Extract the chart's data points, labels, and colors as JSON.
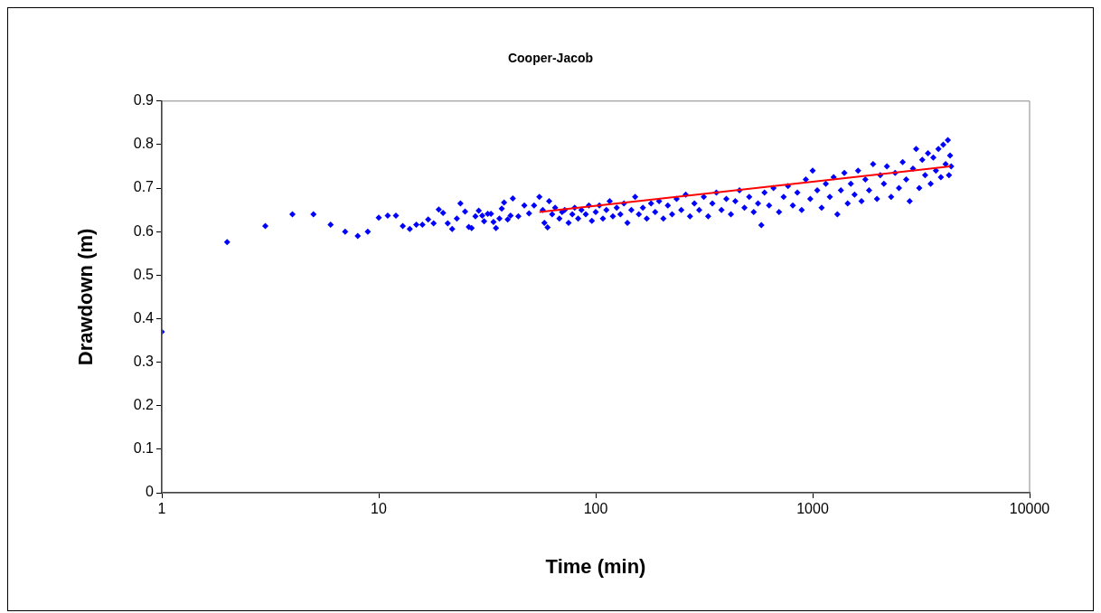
{
  "chart_data": {
    "type": "scatter",
    "title": "Cooper-Jacob",
    "xlabel": "Time (min)",
    "ylabel": "Drawdown (m)",
    "log": "x",
    "xlim": [
      1,
      10000
    ],
    "xticks": [
      1,
      10,
      100,
      1000,
      10000
    ],
    "ylim": [
      0,
      0.9
    ],
    "yticks": [
      0,
      0.1,
      0.2,
      0.3,
      0.4,
      0.5,
      0.6,
      0.7,
      0.8,
      0.9
    ],
    "grid": false,
    "legend": false,
    "marker": "diamond",
    "series": [
      {
        "color": "#0000ff",
        "x": [
          1,
          2,
          3,
          4,
          5,
          6,
          7,
          8,
          8.9,
          10,
          11,
          12,
          12.9,
          13.9,
          14.9,
          15.9,
          16.9,
          17.9,
          18.9,
          19.8,
          20.8,
          21.8,
          22.9,
          23.8,
          25,
          26,
          26.8,
          27.9,
          28.9,
          30,
          30.6,
          31.8,
          32.9,
          33.8,
          34.7,
          36,
          36.9,
          37.8,
          39.3,
          40.5,
          41.5,
          44,
          46.9,
          49.3,
          52,
          55,
          57,
          58,
          60,
          61,
          63,
          65,
          68,
          70,
          72,
          75,
          78,
          80,
          83,
          86,
          90,
          93,
          96,
          100,
          104,
          108,
          112,
          116,
          120,
          125,
          130,
          135,
          140,
          146,
          152,
          158,
          165,
          172,
          180,
          188,
          196,
          205,
          215,
          225,
          236,
          248,
          260,
          272,
          285,
          300,
          315,
          330,
          345,
          360,
          380,
          400,
          420,
          440,
          460,
          485,
          510,
          535,
          560,
          580,
          600,
          630,
          660,
          700,
          735,
          770,
          810,
          850,
          890,
          930,
          975,
          1000,
          1050,
          1100,
          1150,
          1200,
          1250,
          1300,
          1350,
          1400,
          1450,
          1500,
          1560,
          1620,
          1680,
          1750,
          1820,
          1900,
          1980,
          2050,
          2130,
          2200,
          2300,
          2400,
          2500,
          2600,
          2700,
          2800,
          2900,
          3000,
          3100,
          3200,
          3300,
          3400,
          3500,
          3600,
          3700,
          3800,
          3900,
          4000,
          4100,
          4200,
          4250,
          4300,
          4350
        ],
        "values": [
          0.37,
          0.576,
          0.613,
          0.64,
          0.64,
          0.616,
          0.6,
          0.59,
          0.6,
          0.632,
          0.637,
          0.637,
          0.613,
          0.606,
          0.616,
          0.616,
          0.628,
          0.619,
          0.651,
          0.643,
          0.619,
          0.606,
          0.63,
          0.665,
          0.646,
          0.611,
          0.608,
          0.635,
          0.648,
          0.637,
          0.624,
          0.641,
          0.641,
          0.622,
          0.608,
          0.63,
          0.653,
          0.667,
          0.628,
          0.637,
          0.676,
          0.635,
          0.66,
          0.642,
          0.66,
          0.68,
          0.65,
          0.62,
          0.61,
          0.67,
          0.64,
          0.655,
          0.63,
          0.645,
          0.65,
          0.62,
          0.64,
          0.655,
          0.63,
          0.65,
          0.64,
          0.66,
          0.625,
          0.645,
          0.66,
          0.63,
          0.65,
          0.67,
          0.635,
          0.655,
          0.64,
          0.665,
          0.62,
          0.65,
          0.68,
          0.64,
          0.655,
          0.63,
          0.665,
          0.645,
          0.67,
          0.63,
          0.66,
          0.64,
          0.675,
          0.65,
          0.685,
          0.635,
          0.665,
          0.65,
          0.68,
          0.635,
          0.665,
          0.69,
          0.65,
          0.675,
          0.64,
          0.67,
          0.695,
          0.655,
          0.68,
          0.645,
          0.665,
          0.615,
          0.69,
          0.66,
          0.7,
          0.645,
          0.68,
          0.705,
          0.66,
          0.69,
          0.65,
          0.72,
          0.675,
          0.74,
          0.695,
          0.655,
          0.71,
          0.68,
          0.725,
          0.64,
          0.695,
          0.735,
          0.665,
          0.71,
          0.685,
          0.74,
          0.67,
          0.72,
          0.695,
          0.755,
          0.675,
          0.73,
          0.71,
          0.75,
          0.68,
          0.735,
          0.7,
          0.76,
          0.72,
          0.67,
          0.745,
          0.79,
          0.7,
          0.765,
          0.73,
          0.78,
          0.71,
          0.77,
          0.74,
          0.79,
          0.725,
          0.8,
          0.755,
          0.81,
          0.73,
          0.775,
          0.75
        ]
      },
      {
        "type": "line",
        "marker": "none",
        "color": "#ff0000",
        "x": [
          55,
          4300
        ],
        "values": [
          0.645,
          0.75
        ]
      }
    ]
  }
}
